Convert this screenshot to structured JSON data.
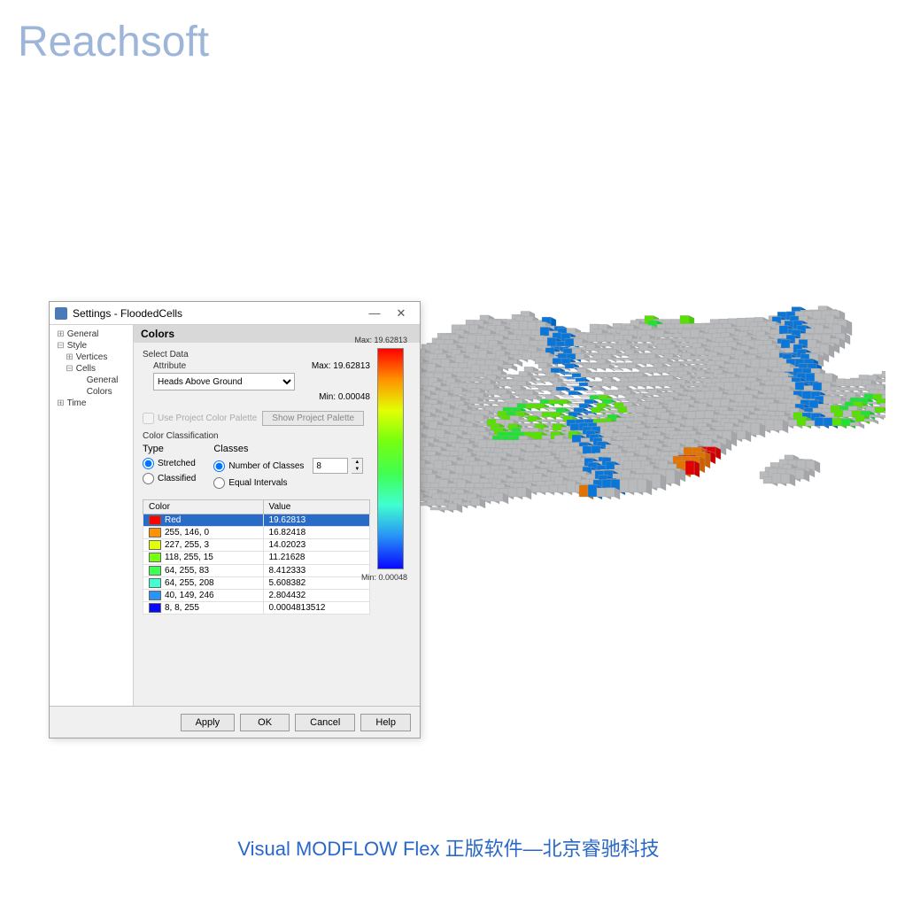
{
  "watermark": "Reachsoft",
  "footer": "Visual MODFLOW Flex 正版软件—北京睿驰科技",
  "dialog": {
    "title": "Settings - FloodedCells",
    "tree": {
      "items": [
        {
          "label": "General",
          "level": 0,
          "exp": "⊞"
        },
        {
          "label": "Style",
          "level": 0,
          "exp": "⊟"
        },
        {
          "label": "Vertices",
          "level": 1,
          "exp": "⊞"
        },
        {
          "label": "Cells",
          "level": 1,
          "exp": "⊟"
        },
        {
          "label": "General",
          "level": 2,
          "exp": ""
        },
        {
          "label": "Colors",
          "level": 2,
          "exp": ""
        },
        {
          "label": "Time",
          "level": 0,
          "exp": "⊞"
        }
      ]
    },
    "section_header": "Colors",
    "select_data": {
      "label": "Select Data",
      "attribute_label": "Attribute",
      "attribute_value": "Heads Above Ground",
      "max_label": "Max:",
      "max_value": "19.62813",
      "min_label": "Min:",
      "min_value": "0.00048"
    },
    "project_palette": {
      "checkbox_label": "Use Project Color Palette",
      "button_label": "Show Project Palette"
    },
    "classification": {
      "label": "Color Classification",
      "type_label": "Type",
      "type_options": [
        "Stretched",
        "Classified"
      ],
      "type_selected": "Stretched",
      "classes_label": "Classes",
      "classes_options": [
        "Number of Classes",
        "Equal Intervals"
      ],
      "classes_selected": "Number of Classes",
      "classes_value": "8"
    },
    "table": {
      "headers": [
        "Color",
        "Value"
      ],
      "rows": [
        {
          "color": "#ff0000",
          "name": "Red",
          "value": "19.62813",
          "selected": true
        },
        {
          "color": "#ff9200",
          "name": "255, 146, 0",
          "value": "16.82418",
          "selected": false
        },
        {
          "color": "#e3ff03",
          "name": "227, 255, 3",
          "value": "14.02023",
          "selected": false
        },
        {
          "color": "#76ff0f",
          "name": "118, 255, 15",
          "value": "11.21628",
          "selected": false
        },
        {
          "color": "#40ff53",
          "name": "64, 255, 83",
          "value": "8.412333",
          "selected": false
        },
        {
          "color": "#40ffd0",
          "name": "64, 255, 208",
          "value": "5.608382",
          "selected": false
        },
        {
          "color": "#2895f6",
          "name": "40, 149, 246",
          "value": "2.804432",
          "selected": false
        },
        {
          "color": "#0808ff",
          "name": "8, 8, 255",
          "value": "0.0004813512",
          "selected": false
        }
      ]
    },
    "gradient": {
      "max_label": "Max: 19.62813",
      "min_label": "Min: 0.00048",
      "stops": [
        "#ff0000",
        "#ff9200",
        "#e3ff03",
        "#76ff0f",
        "#40ff53",
        "#40ffd0",
        "#2895f6",
        "#0808ff"
      ]
    },
    "buttons": {
      "apply": "Apply",
      "ok": "OK",
      "cancel": "Cancel",
      "help": "Help"
    }
  },
  "viz": {
    "base_fill": "#d6d8da",
    "base_stroke": "#9ea0a3",
    "cell_size": 12,
    "cols": 70,
    "rows": 48
  }
}
